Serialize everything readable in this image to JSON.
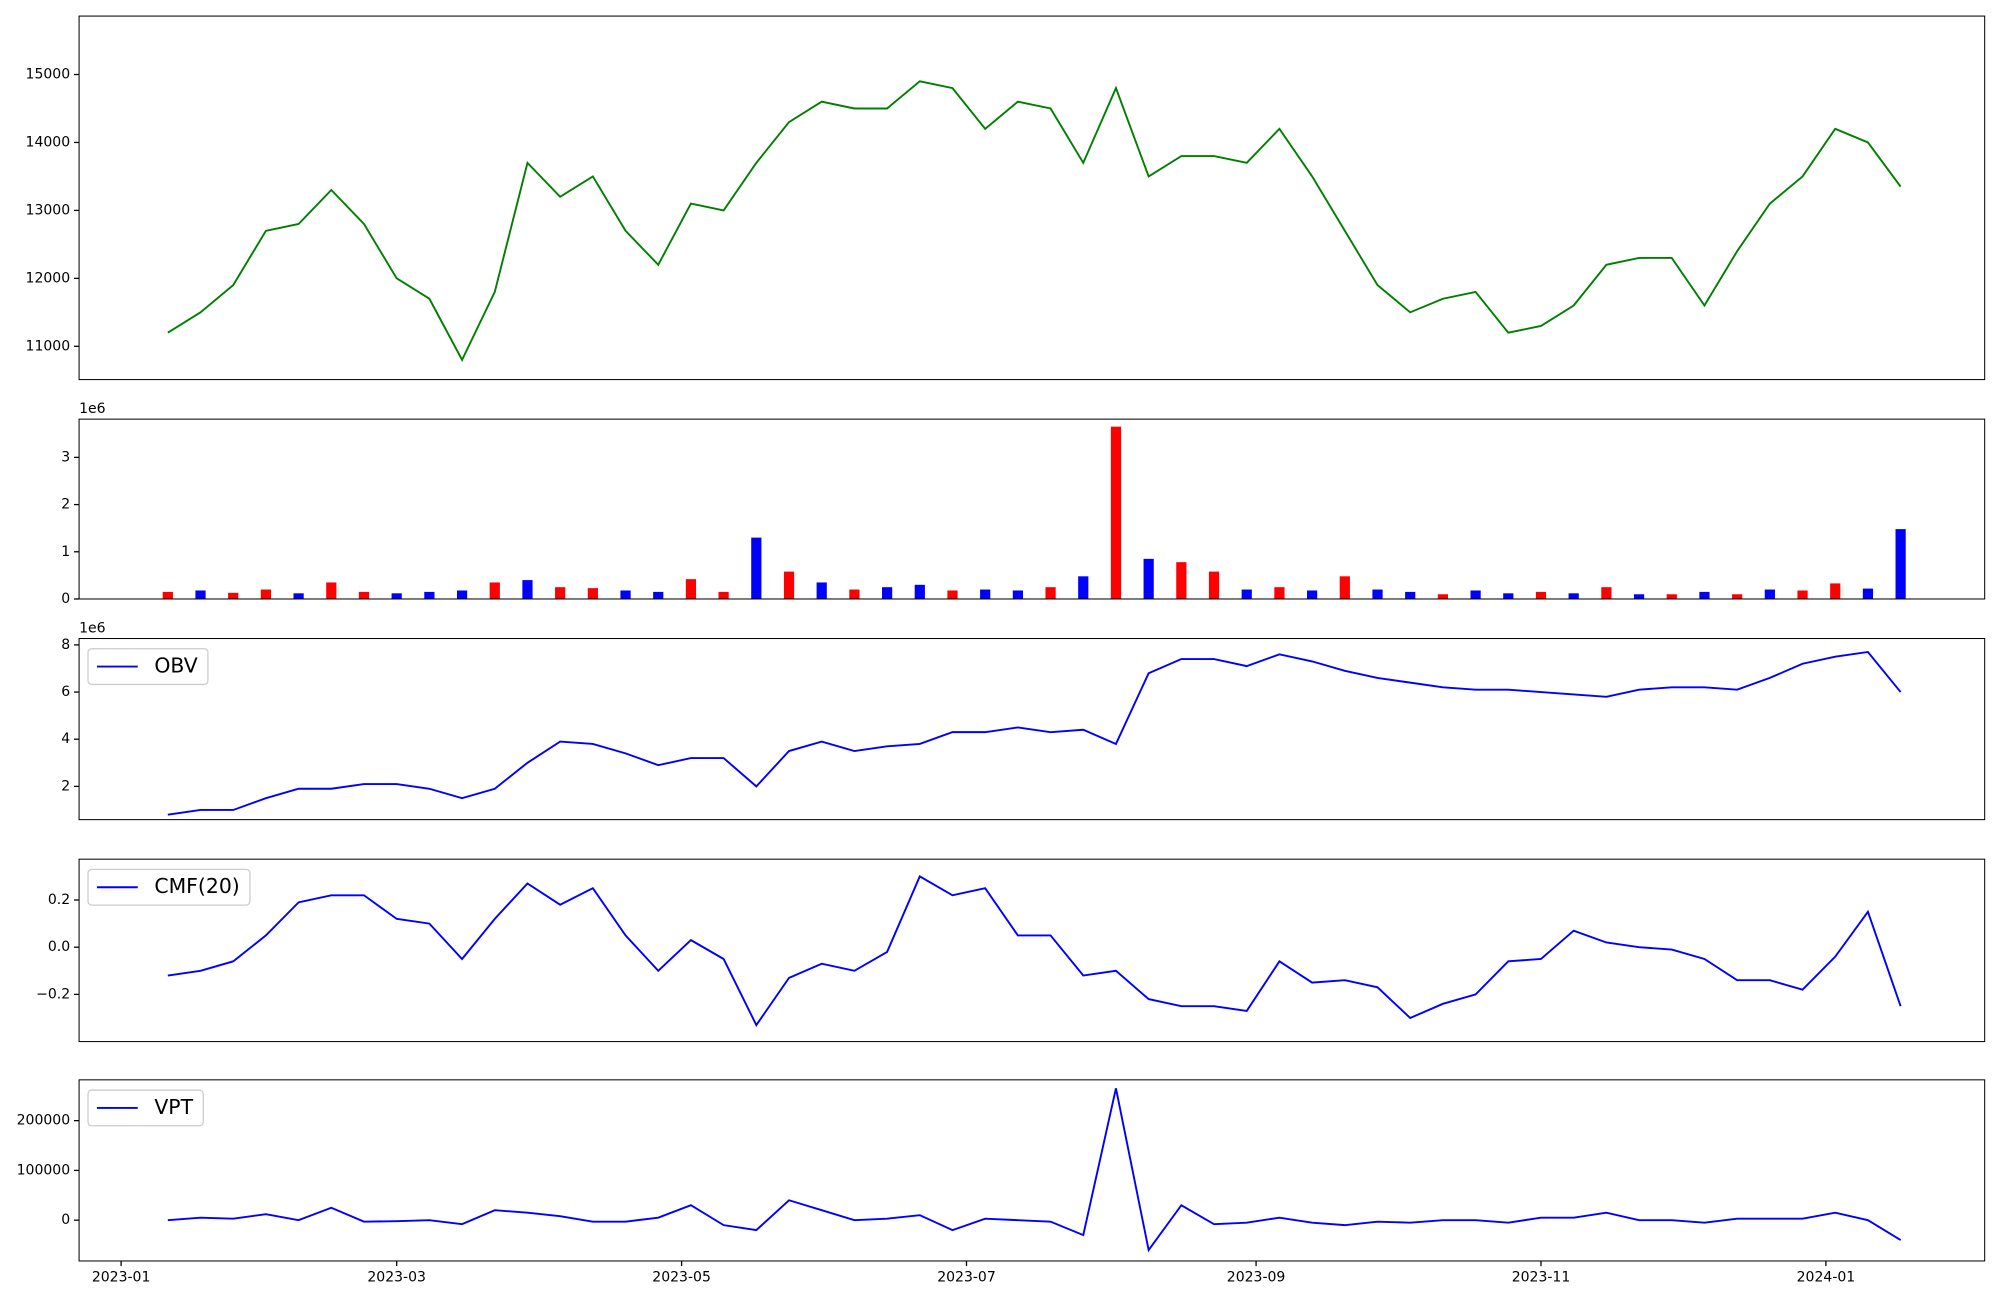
{
  "chart_data": [
    {
      "type": "line",
      "x": [
        "2023-01-11",
        "2023-01-18",
        "2023-01-25",
        "2023-02-01",
        "2023-02-08",
        "2023-02-15",
        "2023-02-22",
        "2023-03-01",
        "2023-03-08",
        "2023-03-15",
        "2023-03-22",
        "2023-03-29",
        "2023-04-05",
        "2023-04-12",
        "2023-04-19",
        "2023-04-26",
        "2023-05-03",
        "2023-05-10",
        "2023-05-17",
        "2023-05-24",
        "2023-05-31",
        "2023-06-07",
        "2023-06-14",
        "2023-06-21",
        "2023-06-28",
        "2023-07-05",
        "2023-07-12",
        "2023-07-19",
        "2023-07-26",
        "2023-08-02",
        "2023-08-09",
        "2023-08-16",
        "2023-08-23",
        "2023-08-30",
        "2023-09-06",
        "2023-09-13",
        "2023-09-20",
        "2023-09-27",
        "2023-10-04",
        "2023-10-11",
        "2023-10-18",
        "2023-10-25",
        "2023-11-01",
        "2023-11-08",
        "2023-11-15",
        "2023-11-22",
        "2023-11-29",
        "2023-12-06",
        "2023-12-13",
        "2023-12-20",
        "2023-12-27",
        "2024-01-03",
        "2024-01-10",
        "2024-01-17"
      ],
      "series": [
        {
          "color": "#008000",
          "values": [
            11200,
            11500,
            11900,
            12700,
            12800,
            13300,
            12800,
            12000,
            11700,
            10800,
            11800,
            13700,
            13200,
            13500,
            12700,
            12200,
            13100,
            13000,
            13700,
            14300,
            14600,
            14500,
            14500,
            14900,
            14800,
            14200,
            14600,
            14500,
            13700,
            14800,
            13500,
            13800,
            13800,
            13700,
            14200,
            13500,
            12700,
            11900,
            11500,
            11700,
            11800,
            11200,
            11300,
            11600,
            12200,
            12300,
            12300,
            11600,
            12400,
            13100,
            13500,
            14200,
            14000,
            13350
          ]
        }
      ],
      "xlim": [
        "2022-12-23",
        "2024-02-04"
      ],
      "ylim": [
        10510,
        15860
      ],
      "yticks": [
        11000,
        12000,
        13000,
        14000,
        15000
      ]
    },
    {
      "type": "bar",
      "x": [
        "2023-01-11",
        "2023-01-18",
        "2023-01-25",
        "2023-02-01",
        "2023-02-08",
        "2023-02-15",
        "2023-02-22",
        "2023-03-01",
        "2023-03-08",
        "2023-03-15",
        "2023-03-22",
        "2023-03-29",
        "2023-04-05",
        "2023-04-12",
        "2023-04-19",
        "2023-04-26",
        "2023-05-03",
        "2023-05-10",
        "2023-05-17",
        "2023-05-24",
        "2023-05-31",
        "2023-06-07",
        "2023-06-14",
        "2023-06-21",
        "2023-06-28",
        "2023-07-05",
        "2023-07-12",
        "2023-07-19",
        "2023-07-26",
        "2023-08-02",
        "2023-08-09",
        "2023-08-16",
        "2023-08-23",
        "2023-08-30",
        "2023-09-06",
        "2023-09-13",
        "2023-09-20",
        "2023-09-27",
        "2023-10-04",
        "2023-10-11",
        "2023-10-18",
        "2023-10-25",
        "2023-11-01",
        "2023-11-08",
        "2023-11-15",
        "2023-11-22",
        "2023-11-29",
        "2023-12-06",
        "2023-12-13",
        "2023-12-20",
        "2023-12-27",
        "2024-01-03",
        "2024-01-10",
        "2024-01-17"
      ],
      "values": [
        150000,
        180000,
        130000,
        200000,
        120000,
        350000,
        150000,
        120000,
        150000,
        180000,
        350000,
        400000,
        250000,
        230000,
        180000,
        150000,
        420000,
        150000,
        1300000,
        580000,
        350000,
        200000,
        250000,
        300000,
        180000,
        200000,
        180000,
        250000,
        480000,
        3650000,
        850000,
        780000,
        580000,
        200000,
        250000,
        180000,
        480000,
        200000,
        150000,
        100000,
        180000,
        120000,
        150000,
        120000,
        250000,
        100000,
        100000,
        150000,
        100000,
        200000,
        180000,
        330000,
        220000,
        1480000
      ],
      "colors": [
        "#ff0000",
        "#0000ff",
        "#ff0000",
        "#ff0000",
        "#0000ff",
        "#ff0000",
        "#ff0000",
        "#0000ff",
        "#0000ff",
        "#0000ff",
        "#ff0000",
        "#0000ff",
        "#ff0000",
        "#ff0000",
        "#0000ff",
        "#0000ff",
        "#ff0000",
        "#ff0000",
        "#0000ff",
        "#ff0000",
        "#0000ff",
        "#ff0000",
        "#0000ff",
        "#0000ff",
        "#ff0000",
        "#0000ff",
        "#0000ff",
        "#ff0000",
        "#0000ff",
        "#ff0000",
        "#0000ff",
        "#ff0000",
        "#ff0000",
        "#0000ff",
        "#ff0000",
        "#0000ff",
        "#ff0000",
        "#0000ff",
        "#0000ff",
        "#ff0000",
        "#0000ff",
        "#0000ff",
        "#ff0000",
        "#0000ff",
        "#ff0000",
        "#0000ff",
        "#ff0000",
        "#0000ff",
        "#ff0000",
        "#0000ff",
        "#ff0000",
        "#ff0000",
        "#0000ff",
        "#0000ff"
      ],
      "xlim": [
        "2022-12-23",
        "2024-02-04"
      ],
      "ylim": [
        0,
        3810000
      ],
      "yticks": [
        {
          "value": 0,
          "label": "0"
        },
        {
          "value": 1000000,
          "label": "1"
        },
        {
          "value": 2000000,
          "label": "2"
        },
        {
          "value": 3000000,
          "label": "3"
        }
      ],
      "y_offset_label": "1e6"
    },
    {
      "type": "line",
      "x": [
        "2023-01-11",
        "2023-01-18",
        "2023-01-25",
        "2023-02-01",
        "2023-02-08",
        "2023-02-15",
        "2023-02-22",
        "2023-03-01",
        "2023-03-08",
        "2023-03-15",
        "2023-03-22",
        "2023-03-29",
        "2023-04-05",
        "2023-04-12",
        "2023-04-19",
        "2023-04-26",
        "2023-05-03",
        "2023-05-10",
        "2023-05-17",
        "2023-05-24",
        "2023-05-31",
        "2023-06-07",
        "2023-06-14",
        "2023-06-21",
        "2023-06-28",
        "2023-07-05",
        "2023-07-12",
        "2023-07-19",
        "2023-07-26",
        "2023-08-02",
        "2023-08-09",
        "2023-08-16",
        "2023-08-23",
        "2023-08-30",
        "2023-09-06",
        "2023-09-13",
        "2023-09-20",
        "2023-09-27",
        "2023-10-04",
        "2023-10-11",
        "2023-10-18",
        "2023-10-25",
        "2023-11-01",
        "2023-11-08",
        "2023-11-15",
        "2023-11-22",
        "2023-11-29",
        "2023-12-06",
        "2023-12-13",
        "2023-12-20",
        "2023-12-27",
        "2024-01-03",
        "2024-01-10",
        "2024-01-17"
      ],
      "series": [
        {
          "name": "OBV",
          "color": "#0000ff",
          "values": [
            800000,
            1000000,
            1000000,
            1500000,
            1900000,
            1900000,
            2100000,
            2100000,
            1900000,
            1500000,
            1900000,
            3000000,
            3900000,
            3800000,
            3400000,
            2900000,
            3200000,
            3200000,
            2000000,
            3500000,
            3900000,
            3500000,
            3700000,
            3800000,
            4300000,
            4300000,
            4500000,
            4300000,
            4400000,
            3800000,
            6800000,
            7400000,
            7400000,
            7100000,
            7600000,
            7300000,
            6900000,
            6600000,
            6400000,
            6200000,
            6100000,
            6100000,
            6000000,
            5900000,
            5800000,
            6100000,
            6200000,
            6200000,
            6100000,
            6600000,
            7200000,
            7500000,
            7700000,
            6000000
          ]
        }
      ],
      "xlim": [
        "2022-12-23",
        "2024-02-04"
      ],
      "ylim": [
        590000,
        8270000
      ],
      "yticks": [
        {
          "value": 2000000,
          "label": "2"
        },
        {
          "value": 4000000,
          "label": "4"
        },
        {
          "value": 6000000,
          "label": "6"
        },
        {
          "value": 8000000,
          "label": "8"
        }
      ],
      "y_offset_label": "1e6",
      "legend": "upper left"
    },
    {
      "type": "line",
      "x": [
        "2023-01-11",
        "2023-01-18",
        "2023-01-25",
        "2023-02-01",
        "2023-02-08",
        "2023-02-15",
        "2023-02-22",
        "2023-03-01",
        "2023-03-08",
        "2023-03-15",
        "2023-03-22",
        "2023-03-29",
        "2023-04-05",
        "2023-04-12",
        "2023-04-19",
        "2023-04-26",
        "2023-05-03",
        "2023-05-10",
        "2023-05-17",
        "2023-05-24",
        "2023-05-31",
        "2023-06-07",
        "2023-06-14",
        "2023-06-21",
        "2023-06-28",
        "2023-07-05",
        "2023-07-12",
        "2023-07-19",
        "2023-07-26",
        "2023-08-02",
        "2023-08-09",
        "2023-08-16",
        "2023-08-23",
        "2023-08-30",
        "2023-09-06",
        "2023-09-13",
        "2023-09-20",
        "2023-09-27",
        "2023-10-04",
        "2023-10-11",
        "2023-10-18",
        "2023-10-25",
        "2023-11-01",
        "2023-11-08",
        "2023-11-15",
        "2023-11-22",
        "2023-11-29",
        "2023-12-06",
        "2023-12-13",
        "2023-12-20",
        "2023-12-27",
        "2024-01-03",
        "2024-01-10",
        "2024-01-17"
      ],
      "series": [
        {
          "name": "CMF(20)",
          "color": "#0000ff",
          "values": [
            -0.12,
            -0.1,
            -0.06,
            0.05,
            0.19,
            0.22,
            0.22,
            0.12,
            0.1,
            -0.05,
            0.12,
            0.27,
            0.18,
            0.25,
            0.05,
            -0.1,
            0.03,
            -0.05,
            -0.33,
            -0.13,
            -0.07,
            -0.1,
            -0.02,
            0.3,
            0.22,
            0.25,
            0.05,
            0.05,
            -0.12,
            -0.1,
            -0.22,
            -0.25,
            -0.25,
            -0.27,
            -0.06,
            -0.15,
            -0.14,
            -0.17,
            -0.3,
            -0.24,
            -0.2,
            -0.06,
            -0.05,
            0.07,
            0.02,
            0.0,
            -0.01,
            -0.05,
            -0.14,
            -0.14,
            -0.18,
            -0.04,
            0.15,
            -0.25
          ]
        }
      ],
      "xlim": [
        "2022-12-23",
        "2024-02-04"
      ],
      "ylim": [
        -0.4,
        0.373
      ],
      "yticks": [
        {
          "value": -0.2,
          "label": "−0.2"
        },
        {
          "value": 0,
          "label": "0.0"
        },
        0.2
      ],
      "legend": "upper left"
    },
    {
      "type": "line",
      "x": [
        "2023-01-11",
        "2023-01-18",
        "2023-01-25",
        "2023-02-01",
        "2023-02-08",
        "2023-02-15",
        "2023-02-22",
        "2023-03-01",
        "2023-03-08",
        "2023-03-15",
        "2023-03-22",
        "2023-03-29",
        "2023-04-05",
        "2023-04-12",
        "2023-04-19",
        "2023-04-26",
        "2023-05-03",
        "2023-05-10",
        "2023-05-17",
        "2023-05-24",
        "2023-05-31",
        "2023-06-07",
        "2023-06-14",
        "2023-06-21",
        "2023-06-28",
        "2023-07-05",
        "2023-07-12",
        "2023-07-19",
        "2023-07-26",
        "2023-08-02",
        "2023-08-09",
        "2023-08-16",
        "2023-08-23",
        "2023-08-30",
        "2023-09-06",
        "2023-09-13",
        "2023-09-20",
        "2023-09-27",
        "2023-10-04",
        "2023-10-11",
        "2023-10-18",
        "2023-10-25",
        "2023-11-01",
        "2023-11-08",
        "2023-11-15",
        "2023-11-22",
        "2023-11-29",
        "2023-12-06",
        "2023-12-13",
        "2023-12-20",
        "2023-12-27",
        "2024-01-03",
        "2024-01-10",
        "2024-01-17"
      ],
      "series": [
        {
          "name": "VPT",
          "color": "#0000ff",
          "values": [
            0,
            5000,
            3000,
            12000,
            0,
            25000,
            -3000,
            -2000,
            0,
            -8000,
            20000,
            15000,
            8000,
            -3000,
            -3000,
            5000,
            30000,
            -10000,
            -20000,
            40000,
            20000,
            0,
            3000,
            10000,
            -20000,
            3000,
            0,
            -3000,
            -30000,
            265000,
            -60000,
            30000,
            -8000,
            -5000,
            5000,
            -5000,
            -10000,
            -3000,
            -5000,
            0,
            0,
            -5000,
            5000,
            5000,
            15000,
            0,
            0,
            -5000,
            3000,
            3000,
            3000,
            15000,
            0,
            -40000
          ]
        }
      ],
      "xlim": [
        "2022-12-23",
        "2024-02-04"
      ],
      "ylim": [
        -82000,
        282000
      ],
      "yticks": [
        0,
        100000,
        200000
      ],
      "xticks": [
        {
          "value": "2023-01-01",
          "label": "2023-01"
        },
        {
          "value": "2023-03-01",
          "label": "2023-03"
        },
        {
          "value": "2023-05-01",
          "label": "2023-05"
        },
        {
          "value": "2023-07-01",
          "label": "2023-07"
        },
        {
          "value": "2023-09-01",
          "label": "2023-09"
        },
        {
          "value": "2023-11-01",
          "label": "2023-11"
        },
        {
          "value": "2024-01-01",
          "label": "2024-01"
        }
      ],
      "legend": "upper left"
    }
  ]
}
